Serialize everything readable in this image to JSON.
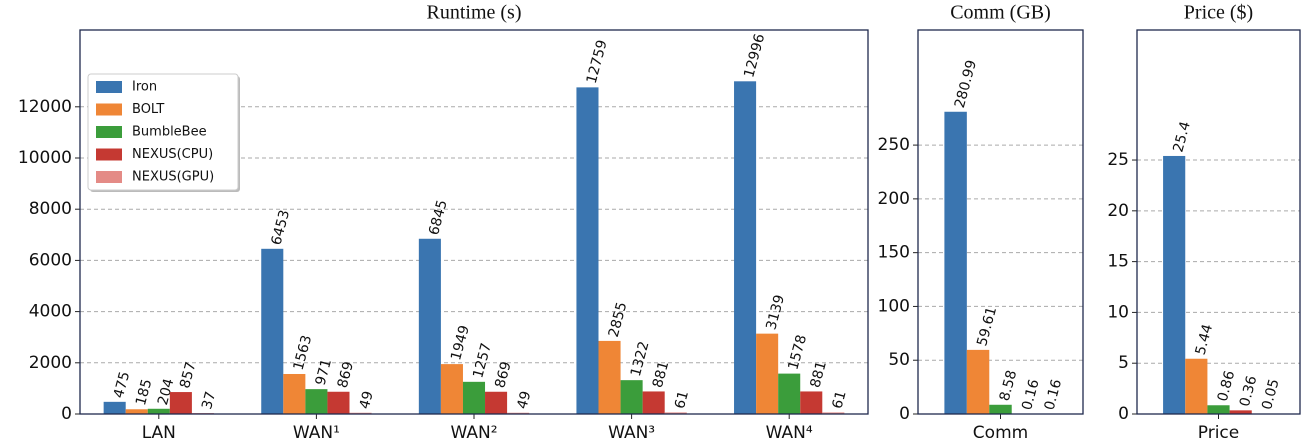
{
  "chart_data": [
    {
      "type": "bar",
      "title": "Runtime (s)",
      "categories": [
        "LAN",
        "WAN¹",
        "WAN²",
        "WAN³",
        "WAN⁴"
      ],
      "series": [
        {
          "name": "Iron",
          "color": "#3a75b0",
          "values": [
            475,
            6453,
            6845,
            12759,
            12996
          ]
        },
        {
          "name": "BOLT",
          "color": "#ef8636",
          "values": [
            185,
            1563,
            1949,
            2855,
            3139
          ]
        },
        {
          "name": "BumbleBee",
          "color": "#3b9d3b",
          "values": [
            204,
            971,
            1257,
            1322,
            1578
          ]
        },
        {
          "name": "NEXUS(CPU)",
          "color": "#c53932",
          "values": [
            857,
            869,
            869,
            881,
            881
          ]
        },
        {
          "name": "NEXUS(GPU)",
          "color": "#e48b86",
          "values": [
            37,
            49,
            49,
            61,
            61
          ]
        }
      ],
      "ylim": [
        0,
        15000
      ],
      "yticks": [
        0,
        2000,
        4000,
        6000,
        8000,
        10000,
        12000
      ],
      "grid": true,
      "legend": "upper left"
    },
    {
      "type": "bar",
      "title": "Comm (GB)",
      "categories": [
        "Comm"
      ],
      "series": [
        {
          "color": "#3a75b0",
          "values": [
            280.99
          ]
        },
        {
          "color": "#ef8636",
          "values": [
            59.61
          ]
        },
        {
          "color": "#3b9d3b",
          "values": [
            8.58
          ]
        },
        {
          "color": "#c53932",
          "values": [
            0.16
          ]
        },
        {
          "color": "#e48b86",
          "values": [
            0.16
          ]
        }
      ],
      "ylim": [
        0,
        357
      ],
      "yticks": [
        0,
        50,
        100,
        150,
        200,
        250
      ],
      "grid": true
    },
    {
      "type": "bar",
      "title": "Price ($)",
      "categories": [
        "Price"
      ],
      "series": [
        {
          "color": "#3a75b0",
          "values": [
            25.4
          ]
        },
        {
          "color": "#ef8636",
          "values": [
            5.44
          ]
        },
        {
          "color": "#3b9d3b",
          "values": [
            0.86
          ]
        },
        {
          "color": "#c53932",
          "values": [
            0.36
          ]
        },
        {
          "color": "#e48b86",
          "values": [
            0.05
          ]
        }
      ],
      "ylim": [
        0,
        37.8
      ],
      "yticks": [
        0,
        5,
        10,
        15,
        20,
        25
      ],
      "grid": true
    }
  ]
}
